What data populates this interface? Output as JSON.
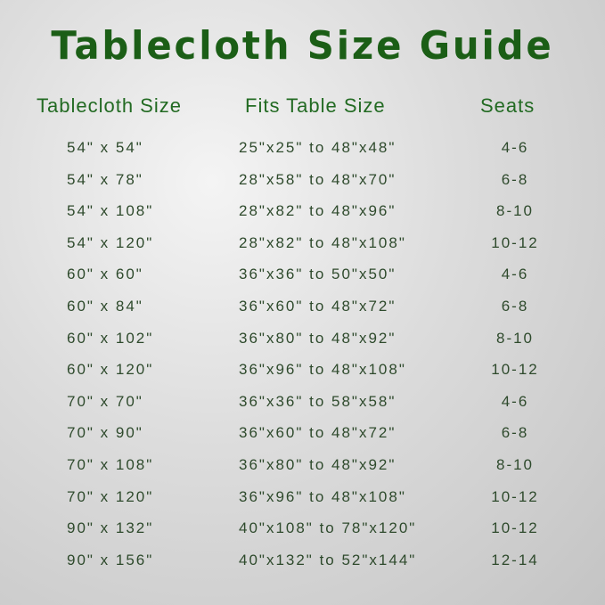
{
  "title": "Tablecloth Size Guide",
  "headers": {
    "size": "Tablecloth Size",
    "fits": "Fits Table Size",
    "seats": "Seats"
  },
  "rows": [
    {
      "size": "54\" x 54\"",
      "fits": "25\"x25\" to 48\"x48\"",
      "seats": "4-6"
    },
    {
      "size": "54\" x 78\"",
      "fits": "28\"x58\" to 48\"x70\"",
      "seats": "6-8"
    },
    {
      "size": "54\" x 108\"",
      "fits": "28\"x82\" to 48\"x96\"",
      "seats": "8-10"
    },
    {
      "size": "54\" x 120\"",
      "fits": "28\"x82\" to 48\"x108\"",
      "seats": "10-12"
    },
    {
      "size": "60\" x 60\"",
      "fits": "36\"x36\" to 50\"x50\"",
      "seats": "4-6"
    },
    {
      "size": "60\" x 84\"",
      "fits": "36\"x60\" to 48\"x72\"",
      "seats": "6-8"
    },
    {
      "size": "60\" x 102\"",
      "fits": "36\"x80\" to 48\"x92\"",
      "seats": "8-10"
    },
    {
      "size": "60\" x 120\"",
      "fits": "36\"x96\" to 48\"x108\"",
      "seats": "10-12"
    },
    {
      "size": "70\" x 70\"",
      "fits": "36\"x36\" to 58\"x58\"",
      "seats": "4-6"
    },
    {
      "size": "70\" x 90\"",
      "fits": "36\"x60\" to 48\"x72\"",
      "seats": "6-8"
    },
    {
      "size": "70\" x 108\"",
      "fits": "36\"x80\" to 48\"x92\"",
      "seats": "8-10"
    },
    {
      "size": "70\" x 120\"",
      "fits": "36\"x96\" to 48\"x108\"",
      "seats": "10-12"
    },
    {
      "size": "90\" x 132\"",
      "fits": "40\"x108\" to 78\"x120\"",
      "seats": "10-12"
    },
    {
      "size": "90\" x 156\"",
      "fits": "40\"x132\" to 52\"x144\"",
      "seats": "12-14"
    }
  ],
  "colors": {
    "title": "#1b5e16",
    "header": "#226a22",
    "text": "#2e4a2c"
  }
}
